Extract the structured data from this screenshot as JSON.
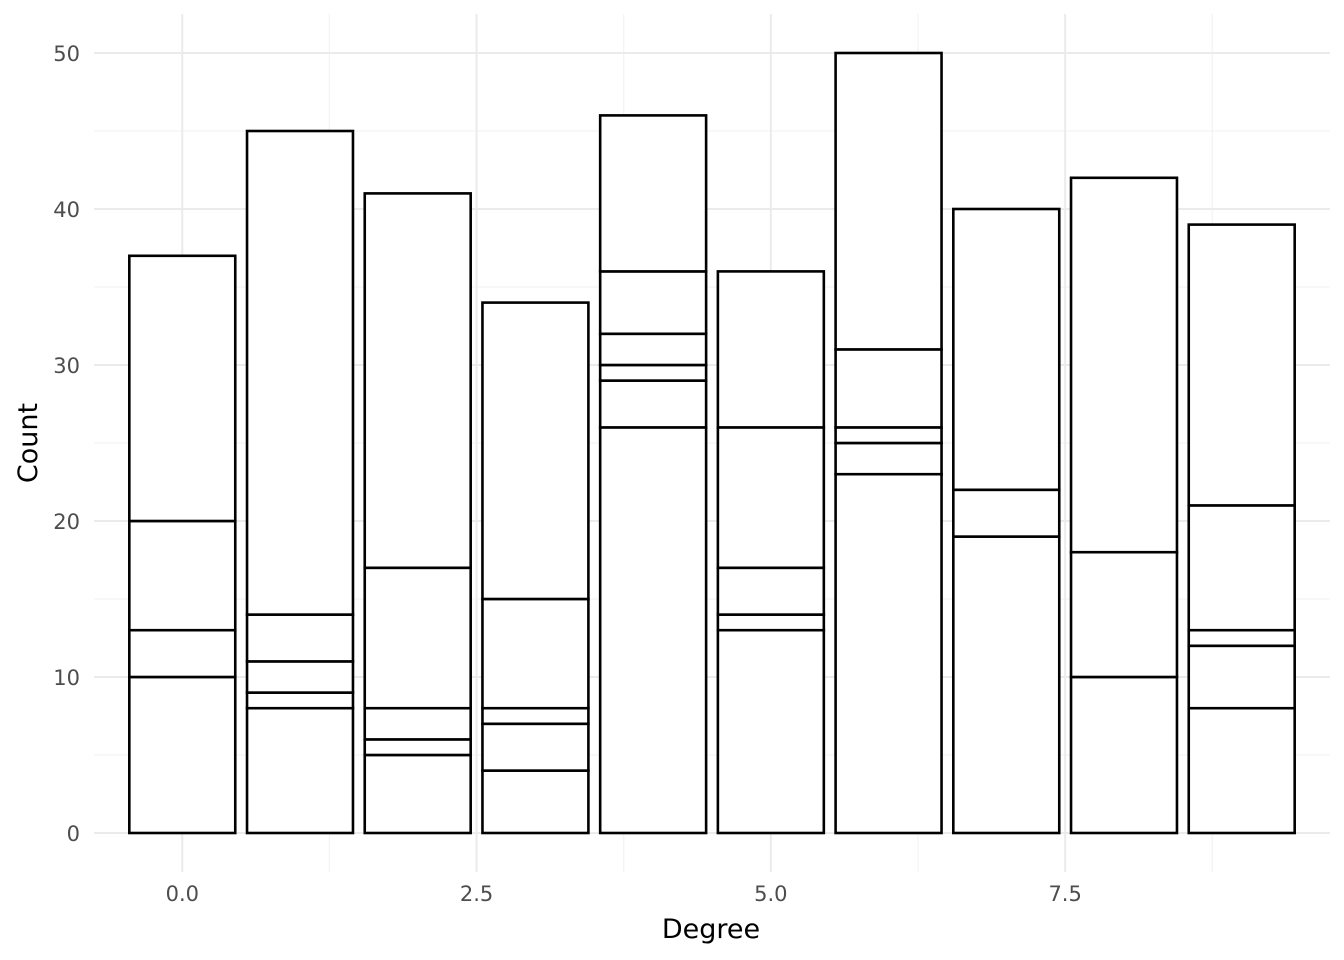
{
  "chart_data": {
    "type": "bar",
    "stacked": true,
    "title": "",
    "xlabel": "Degree",
    "ylabel": "Count",
    "x": [
      0,
      1,
      2,
      3,
      4,
      5,
      6,
      7,
      8,
      9
    ],
    "xlim": [
      -0.75,
      9.75
    ],
    "ylim": [
      -2.5,
      52.5
    ],
    "x_ticks": [
      0.0,
      2.5,
      5.0,
      7.5
    ],
    "x_tick_labels": [
      "0.0",
      "2.5",
      "5.0",
      "7.5"
    ],
    "y_ticks": [
      0,
      10,
      20,
      30,
      40,
      50
    ],
    "y_tick_labels": [
      "0",
      "10",
      "20",
      "30",
      "40",
      "50"
    ],
    "grid": true,
    "legend": "none",
    "bar_fill": "#ffffff",
    "bar_outline": "#000000",
    "stack_boundaries": [
      [
        10,
        13,
        20,
        37
      ],
      [
        8,
        9,
        11,
        14,
        45
      ],
      [
        5,
        6,
        8,
        17,
        41
      ],
      [
        4,
        7,
        8,
        15,
        34
      ],
      [
        26,
        29,
        30,
        32,
        36,
        46
      ],
      [
        13,
        14,
        17,
        26,
        36
      ],
      [
        23,
        25,
        26,
        31,
        50
      ],
      [
        19,
        22,
        40
      ],
      [
        10,
        18,
        42
      ],
      [
        8,
        12,
        13,
        21,
        39
      ]
    ],
    "totals": [
      37,
      45,
      41,
      34,
      46,
      36,
      50,
      40,
      42,
      39
    ]
  }
}
